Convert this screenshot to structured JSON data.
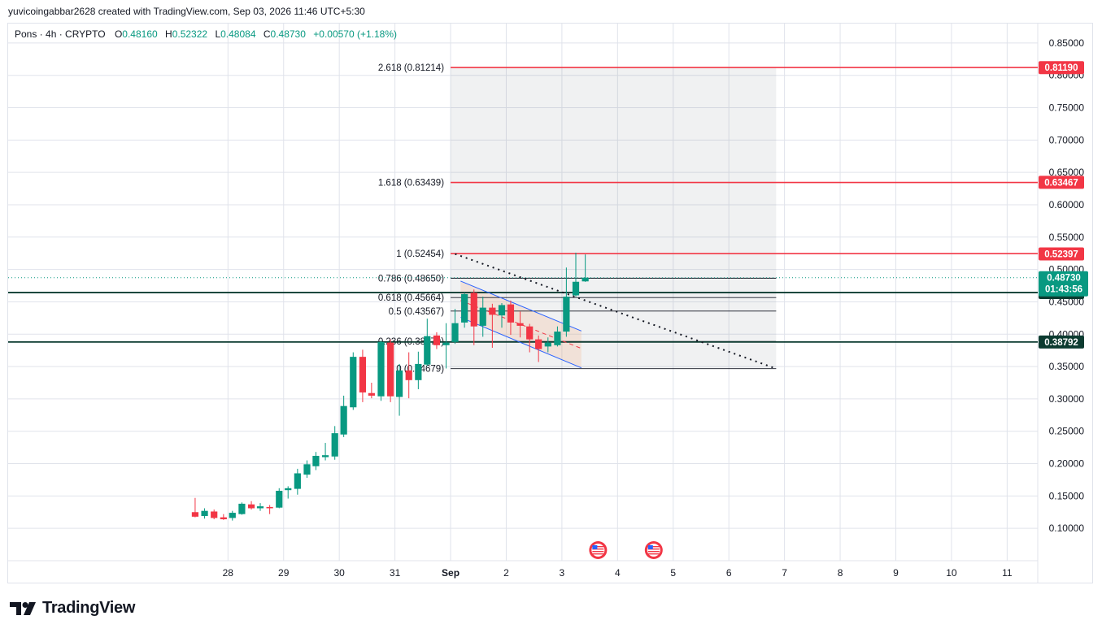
{
  "header": {
    "credit": "yuvicoingabbar2628 created with TradingView.com, Sep 03, 2026 11:46 UTC+5:30"
  },
  "legend": {
    "symbol": "Pons · 4h · CRYPTO",
    "o_label": "O",
    "o_value": "0.48160",
    "h_label": "H",
    "h_value": "0.52322",
    "l_label": "L",
    "l_value": "0.48084",
    "c_label": "C",
    "c_value": "0.48730",
    "change": "+0.00570 (+1.18%)"
  },
  "brand": {
    "name": "TradingView",
    "icon": "tradingview-logo-icon"
  },
  "colors": {
    "up": "#089981",
    "down": "#f23645",
    "fib_red": "#f23645",
    "dark_line": "#0c3b30",
    "grid": "#e0e3eb"
  },
  "chart_data": {
    "type": "candlestick",
    "timeframe": "4h",
    "y_axis": {
      "ticks": [
        "0.85000",
        "0.80000",
        "0.75000",
        "0.70000",
        "0.65000",
        "0.60000",
        "0.55000",
        "0.50000",
        "0.45000",
        "0.40000",
        "0.35000",
        "0.30000",
        "0.25000",
        "0.20000",
        "0.15000",
        "0.10000"
      ],
      "range": [
        0.05,
        0.88
      ]
    },
    "x_axis": {
      "ticks": [
        {
          "label": "28",
          "day": 0
        },
        {
          "label": "29",
          "day": 1
        },
        {
          "label": "30",
          "day": 2
        },
        {
          "label": "31",
          "day": 3
        },
        {
          "label": "Sep",
          "day": 4
        },
        {
          "label": "2",
          "day": 5
        },
        {
          "label": "3",
          "day": 6
        },
        {
          "label": "4",
          "day": 7
        },
        {
          "label": "5",
          "day": 8
        },
        {
          "label": "6",
          "day": 9
        },
        {
          "label": "7",
          "day": 10
        },
        {
          "label": "8",
          "day": 11
        },
        {
          "label": "9",
          "day": 12
        },
        {
          "label": "10",
          "day": 13
        },
        {
          "label": "11",
          "day": 14
        }
      ],
      "range_days": [
        -3.95,
        14.55
      ]
    },
    "candles": [
      {
        "t": -0.59,
        "o": 0.125,
        "h": 0.147,
        "l": 0.117,
        "c": 0.118
      },
      {
        "t": -0.42,
        "o": 0.119,
        "h": 0.131,
        "l": 0.115,
        "c": 0.127
      },
      {
        "t": -0.25,
        "o": 0.126,
        "h": 0.129,
        "l": 0.114,
        "c": 0.116
      },
      {
        "t": -0.08,
        "o": 0.117,
        "h": 0.122,
        "l": 0.113,
        "c": 0.114
      },
      {
        "t": 0.08,
        "o": 0.116,
        "h": 0.127,
        "l": 0.112,
        "c": 0.124
      },
      {
        "t": 0.25,
        "o": 0.122,
        "h": 0.14,
        "l": 0.121,
        "c": 0.138
      },
      {
        "t": 0.42,
        "o": 0.137,
        "h": 0.142,
        "l": 0.129,
        "c": 0.131
      },
      {
        "t": 0.58,
        "o": 0.131,
        "h": 0.139,
        "l": 0.127,
        "c": 0.134
      },
      {
        "t": 0.75,
        "o": 0.133,
        "h": 0.136,
        "l": 0.122,
        "c": 0.131
      },
      {
        "t": 0.92,
        "o": 0.132,
        "h": 0.162,
        "l": 0.131,
        "c": 0.158
      },
      {
        "t": 1.08,
        "o": 0.159,
        "h": 0.165,
        "l": 0.146,
        "c": 0.162
      },
      {
        "t": 1.25,
        "o": 0.161,
        "h": 0.192,
        "l": 0.152,
        "c": 0.185
      },
      {
        "t": 1.42,
        "o": 0.183,
        "h": 0.205,
        "l": 0.178,
        "c": 0.199
      },
      {
        "t": 1.58,
        "o": 0.196,
        "h": 0.218,
        "l": 0.19,
        "c": 0.212
      },
      {
        "t": 1.75,
        "o": 0.21,
        "h": 0.232,
        "l": 0.205,
        "c": 0.213
      },
      {
        "t": 1.92,
        "o": 0.211,
        "h": 0.258,
        "l": 0.206,
        "c": 0.247
      },
      {
        "t": 2.08,
        "o": 0.245,
        "h": 0.305,
        "l": 0.241,
        "c": 0.289
      },
      {
        "t": 2.25,
        "o": 0.287,
        "h": 0.372,
        "l": 0.283,
        "c": 0.365
      },
      {
        "t": 2.42,
        "o": 0.365,
        "h": 0.376,
        "l": 0.295,
        "c": 0.31
      },
      {
        "t": 2.58,
        "o": 0.309,
        "h": 0.325,
        "l": 0.301,
        "c": 0.305
      },
      {
        "t": 2.75,
        "o": 0.304,
        "h": 0.39,
        "l": 0.297,
        "c": 0.388
      },
      {
        "t": 2.92,
        "o": 0.387,
        "h": 0.392,
        "l": 0.295,
        "c": 0.304
      },
      {
        "t": 3.08,
        "o": 0.303,
        "h": 0.354,
        "l": 0.274,
        "c": 0.344
      },
      {
        "t": 3.25,
        "o": 0.344,
        "h": 0.372,
        "l": 0.301,
        "c": 0.329
      },
      {
        "t": 3.42,
        "o": 0.329,
        "h": 0.373,
        "l": 0.315,
        "c": 0.354
      },
      {
        "t": 3.58,
        "o": 0.353,
        "h": 0.424,
        "l": 0.351,
        "c": 0.397
      },
      {
        "t": 3.75,
        "o": 0.398,
        "h": 0.403,
        "l": 0.377,
        "c": 0.383
      },
      {
        "t": 3.92,
        "o": 0.383,
        "h": 0.417,
        "l": 0.347,
        "c": 0.387
      },
      {
        "t": 4.08,
        "o": 0.388,
        "h": 0.439,
        "l": 0.385,
        "c": 0.417
      },
      {
        "t": 4.25,
        "o": 0.418,
        "h": 0.464,
        "l": 0.41,
        "c": 0.462
      },
      {
        "t": 4.42,
        "o": 0.464,
        "h": 0.469,
        "l": 0.383,
        "c": 0.412
      },
      {
        "t": 4.58,
        "o": 0.413,
        "h": 0.458,
        "l": 0.396,
        "c": 0.441
      },
      {
        "t": 4.75,
        "o": 0.441,
        "h": 0.447,
        "l": 0.379,
        "c": 0.43
      },
      {
        "t": 4.92,
        "o": 0.429,
        "h": 0.448,
        "l": 0.41,
        "c": 0.445
      },
      {
        "t": 5.08,
        "o": 0.446,
        "h": 0.452,
        "l": 0.399,
        "c": 0.418
      },
      {
        "t": 5.25,
        "o": 0.417,
        "h": 0.435,
        "l": 0.395,
        "c": 0.413
      },
      {
        "t": 5.42,
        "o": 0.412,
        "h": 0.416,
        "l": 0.372,
        "c": 0.392
      },
      {
        "t": 5.58,
        "o": 0.392,
        "h": 0.398,
        "l": 0.357,
        "c": 0.377
      },
      {
        "t": 5.75,
        "o": 0.381,
        "h": 0.395,
        "l": 0.372,
        "c": 0.387
      },
      {
        "t": 5.92,
        "o": 0.383,
        "h": 0.412,
        "l": 0.381,
        "c": 0.404
      },
      {
        "t": 6.08,
        "o": 0.404,
        "h": 0.503,
        "l": 0.396,
        "c": 0.458
      },
      {
        "t": 6.25,
        "o": 0.46,
        "h": 0.526,
        "l": 0.458,
        "c": 0.481
      },
      {
        "t": 6.42,
        "o": 0.4816,
        "h": 0.52322,
        "l": 0.48084,
        "c": 0.4873
      }
    ],
    "fib_levels": [
      {
        "label": "2.618 (0.81214)",
        "value": 0.81214,
        "color": "red"
      },
      {
        "label": "1.618 (0.63439)",
        "value": 0.63439,
        "color": "red"
      },
      {
        "label": "1 (0.52454)",
        "value": 0.52454,
        "color": "red"
      },
      {
        "label": "0.786 (0.48650)",
        "value": 0.4865,
        "color": "black"
      },
      {
        "label": "0.618 (0.45664)",
        "value": 0.45664,
        "color": "black"
      },
      {
        "label": "0.5 (0.43567)",
        "value": 0.43567,
        "color": "black"
      },
      {
        "label": "0.236 (0.38879)",
        "value": 0.38879,
        "color": "black"
      },
      {
        "label": "0 (0.34679)",
        "value": 0.34679,
        "color": "black"
      }
    ],
    "fib_zone": {
      "t_start": 4.0,
      "t_end": 9.85
    },
    "horizontal_lines": [
      {
        "value": 0.46432,
        "color": "dark"
      },
      {
        "value": 0.38792,
        "color": "dark"
      }
    ],
    "trend_line": {
      "t1": 4.08,
      "v1": 0.524,
      "t2": 9.85,
      "v2": 0.3468
    },
    "channel": {
      "upper": {
        "t1": 4.18,
        "v1": 0.482,
        "t2": 6.35,
        "v2": 0.405
      },
      "lower": {
        "t1": 4.18,
        "v1": 0.426,
        "t2": 6.35,
        "v2": 0.348
      },
      "mid": {
        "t1": 4.18,
        "v1": 0.452,
        "t2": 6.35,
        "v2": 0.378
      }
    },
    "current_price": {
      "value": 0.4873,
      "label": "0.48730",
      "countdown": "01:43:56"
    },
    "price_tags": [
      {
        "value": 0.8119,
        "label": "0.81190",
        "color": "red"
      },
      {
        "value": 0.63467,
        "label": "0.63467",
        "color": "red"
      },
      {
        "value": 0.52397,
        "label": "0.52397",
        "color": "red"
      },
      {
        "value": 0.46432,
        "label": "0.46432",
        "color": "dark"
      },
      {
        "value": 0.38792,
        "label": "0.38792",
        "color": "dark"
      }
    ],
    "event_markers": [
      {
        "t": 6.65,
        "icon": "us-flag-icon"
      },
      {
        "t": 7.65,
        "icon": "us-flag-icon"
      }
    ]
  }
}
